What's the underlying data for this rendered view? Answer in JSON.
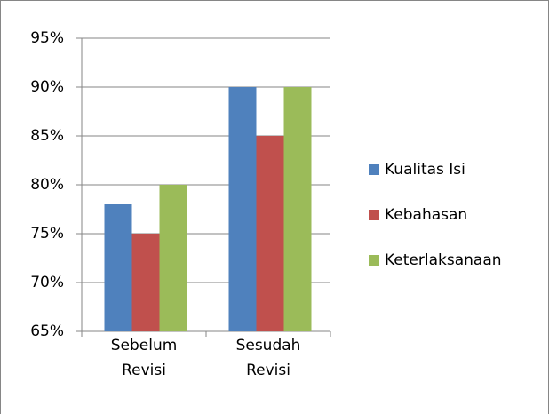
{
  "chart_data": {
    "type": "bar",
    "categories": [
      "Sebelum Revisi",
      "Sesudah Revisi"
    ],
    "series": [
      {
        "name": "Kualitas Isi",
        "color": "#4f81bd",
        "values": [
          78,
          90
        ]
      },
      {
        "name": "Kebahasan",
        "color": "#c0504d",
        "values": [
          75,
          85
        ]
      },
      {
        "name": "Keterlaksanaan",
        "color": "#9bbb59",
        "values": [
          80,
          90
        ]
      }
    ],
    "ylim": [
      65,
      95
    ],
    "yticks": [
      {
        "value": 65,
        "label": "65%"
      },
      {
        "value": 70,
        "label": "70%"
      },
      {
        "value": 75,
        "label": "75%"
      },
      {
        "value": 80,
        "label": "80%"
      },
      {
        "value": 85,
        "label": "85%"
      },
      {
        "value": 90,
        "label": "90%"
      },
      {
        "value": 95,
        "label": "95%"
      }
    ],
    "grid": true,
    "legend": "right"
  }
}
